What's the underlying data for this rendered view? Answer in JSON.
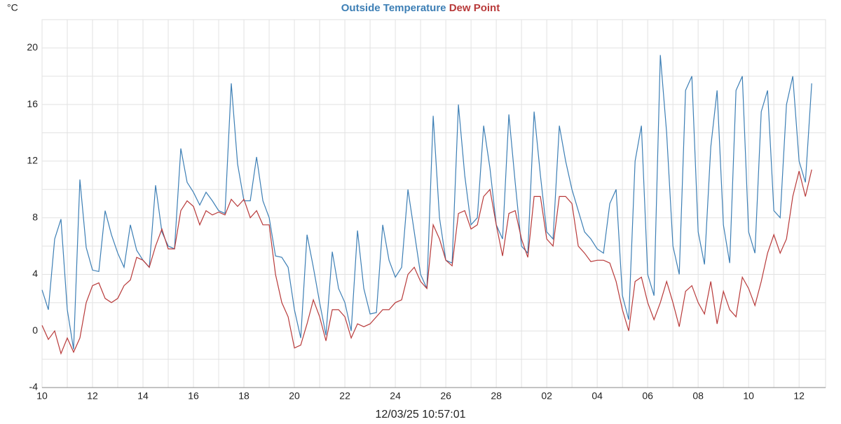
{
  "chart_data": {
    "type": "line",
    "y_label": "°C",
    "footer": "12/03/25 10:57:01",
    "x": [
      0,
      0.25,
      0.5,
      0.75,
      1,
      1.25,
      1.5,
      1.75,
      2,
      2.25,
      2.5,
      2.75,
      3,
      3.25,
      3.5,
      3.75,
      4,
      4.25,
      4.5,
      4.75,
      5,
      5.25,
      5.5,
      5.75,
      6,
      6.25,
      6.5,
      6.75,
      7,
      7.25,
      7.5,
      7.75,
      8,
      8.25,
      8.5,
      8.75,
      9,
      9.25,
      9.5,
      9.75,
      10,
      10.25,
      10.5,
      10.75,
      11,
      11.25,
      11.5,
      11.75,
      12,
      12.25,
      12.5,
      12.75,
      13,
      13.25,
      13.5,
      13.75,
      14,
      14.25,
      14.5,
      14.75,
      15,
      15.25,
      15.5,
      15.75,
      16,
      16.25,
      16.5,
      16.75,
      17,
      17.25,
      17.5,
      17.75,
      18,
      18.25,
      18.5,
      18.75,
      19,
      19.25,
      19.5,
      19.75,
      20,
      20.25,
      20.5,
      20.75,
      21,
      21.25,
      21.5,
      21.75,
      22,
      22.25,
      22.5,
      22.75,
      23,
      23.25,
      23.5,
      23.75,
      24,
      24.25,
      24.5,
      24.75,
      25,
      25.25,
      25.5,
      25.75,
      26,
      26.25,
      26.5,
      26.75,
      27,
      27.25,
      27.5,
      27.75,
      28,
      28.25,
      28.5,
      28.75,
      29,
      29.25,
      29.5,
      29.75,
      30,
      30.25,
      30.5
    ],
    "series": [
      {
        "name": "Outside Temperature",
        "color": "#3d7fb5",
        "values": [
          2.9,
          1.5,
          6.5,
          7.9,
          1.5,
          -1.3,
          10.7,
          5.9,
          4.3,
          4.2,
          8.5,
          6.8,
          5.5,
          4.5,
          7.5,
          5.7,
          5.0,
          4.5,
          10.3,
          7.0,
          6.0,
          5.8,
          12.9,
          10.5,
          9.8,
          8.9,
          9.8,
          9.2,
          8.5,
          8.3,
          17.5,
          11.8,
          9.2,
          9.2,
          12.3,
          9.2,
          8.0,
          5.3,
          5.2,
          4.5,
          1.5,
          -0.5,
          6.8,
          4.5,
          2.0,
          -0.3,
          5.6,
          3.0,
          2.0,
          0.0,
          7.1,
          3.0,
          1.2,
          1.3,
          7.5,
          5.0,
          3.8,
          4.5,
          10.0,
          7.0,
          4.0,
          3.0,
          15.2,
          8.0,
          5.0,
          4.8,
          16.0,
          11.0,
          7.5,
          8.0,
          14.5,
          11.5,
          7.5,
          6.5,
          15.3,
          10.5,
          6.0,
          5.5,
          15.5,
          11.0,
          7.0,
          6.5,
          14.5,
          12.0,
          10.0,
          8.5,
          7.0,
          6.5,
          5.8,
          5.5,
          9.0,
          10.0,
          2.5,
          0.8,
          12.0,
          14.5,
          4.0,
          2.5,
          19.5,
          14.0,
          6.0,
          4.0,
          17.0,
          18.0,
          7.0,
          4.7,
          13.0,
          17.0,
          7.5,
          4.8,
          17.0,
          18.0,
          7.0,
          5.5,
          15.5,
          17.0,
          8.5,
          8.0,
          16.0,
          18.0,
          12.0,
          10.5,
          17.5
        ]
      },
      {
        "name": "Dew Point",
        "color": "#b83a3a",
        "values": [
          0.4,
          -0.6,
          0.0,
          -1.6,
          -0.5,
          -1.5,
          -0.5,
          2.0,
          3.2,
          3.4,
          2.3,
          2.0,
          2.3,
          3.2,
          3.6,
          5.2,
          5.0,
          4.5,
          6.0,
          7.2,
          5.8,
          5.8,
          8.5,
          9.2,
          8.8,
          7.5,
          8.5,
          8.2,
          8.4,
          8.2,
          9.3,
          8.8,
          9.3,
          8.0,
          8.5,
          7.5,
          7.5,
          4.0,
          2.0,
          1.0,
          -1.2,
          -1.0,
          0.5,
          2.2,
          1.0,
          -0.7,
          1.5,
          1.5,
          1.0,
          -0.5,
          0.5,
          0.3,
          0.5,
          1.0,
          1.5,
          1.5,
          2.0,
          2.2,
          4.0,
          4.5,
          3.5,
          3.0,
          7.5,
          6.5,
          5.0,
          4.6,
          8.3,
          8.5,
          7.2,
          7.5,
          9.5,
          10.0,
          7.5,
          5.3,
          8.3,
          8.5,
          6.5,
          5.2,
          9.5,
          9.5,
          6.5,
          6.0,
          9.5,
          9.5,
          9.0,
          6.0,
          5.5,
          4.9,
          5.0,
          5.0,
          4.8,
          3.5,
          1.5,
          0.0,
          3.5,
          3.8,
          2.0,
          0.8,
          2.0,
          3.5,
          2.0,
          0.3,
          2.8,
          3.2,
          2.0,
          1.2,
          3.5,
          0.5,
          2.8,
          1.5,
          1.0,
          3.8,
          3.0,
          1.8,
          3.5,
          5.5,
          6.8,
          5.5,
          6.5,
          9.5,
          11.3,
          9.5,
          11.4
        ]
      }
    ],
    "xlim": [
      0,
      31.05
    ],
    "xticks": [
      {
        "value": 0,
        "label": "10"
      },
      {
        "value": 2,
        "label": "12"
      },
      {
        "value": 4,
        "label": "14"
      },
      {
        "value": 6,
        "label": "16"
      },
      {
        "value": 8,
        "label": "18"
      },
      {
        "value": 10,
        "label": "20"
      },
      {
        "value": 12,
        "label": "22"
      },
      {
        "value": 14,
        "label": "24"
      },
      {
        "value": 16,
        "label": "26"
      },
      {
        "value": 18,
        "label": "28"
      },
      {
        "value": 20,
        "label": "02"
      },
      {
        "value": 22,
        "label": "04"
      },
      {
        "value": 24,
        "label": "06"
      },
      {
        "value": 26,
        "label": "08"
      },
      {
        "value": 28,
        "label": "10"
      },
      {
        "value": 30,
        "label": "12"
      }
    ],
    "ylim": [
      -4,
      22
    ],
    "yticks": [
      -4,
      0,
      4,
      8,
      12,
      16,
      20
    ],
    "grid": true
  }
}
